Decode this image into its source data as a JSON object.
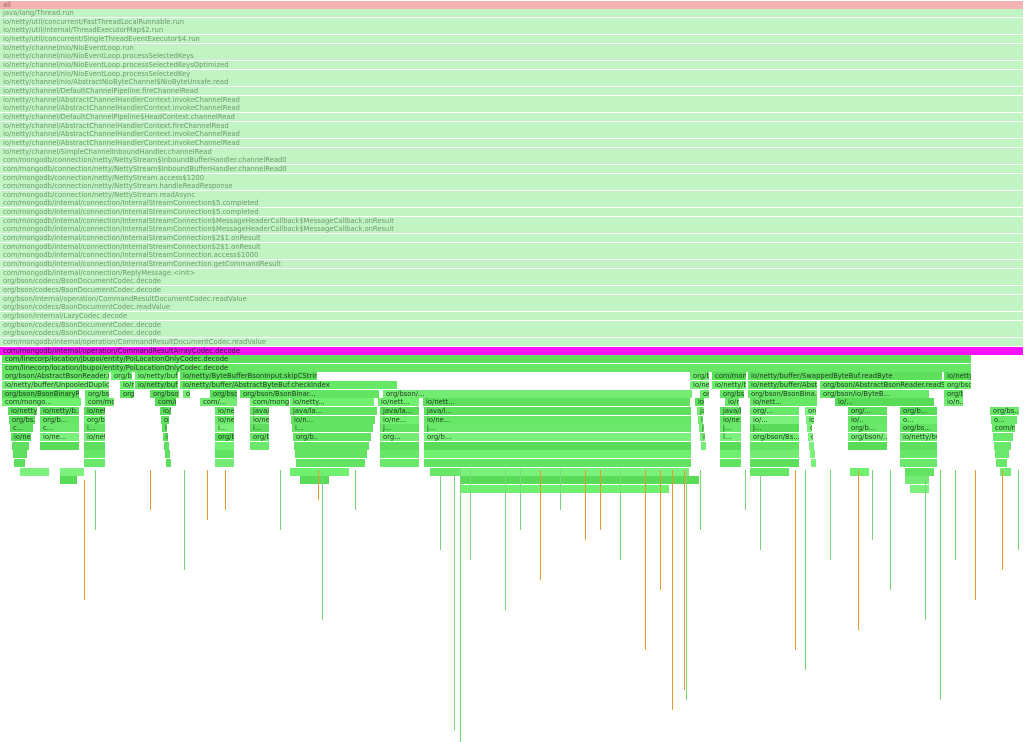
{
  "colors": {
    "root": "#f4b3b3",
    "dim": "#c2f3c2",
    "highlight": "#ff11ff",
    "hot": "#e2e862",
    "tick": "#e69a2c"
  },
  "frames": [
    "all",
    "java/lang/Thread.run",
    "io/netty/util/concurrent/FastThreadLocalRunnable.run",
    "io/netty/util/internal/ThreadExecutorMap$2.run",
    "io/netty/util/concurrent/SingleThreadEventExecutor$4.run",
    "io/netty/channel/nio/NioEventLoop.run",
    "io/netty/channel/nio/NioEventLoop.processSelectedKeys",
    "io/netty/channel/nio/NioEventLoop.processSelectedKeysOptimized",
    "io/netty/channel/nio/NioEventLoop.processSelectedKey",
    "io/netty/channel/nio/AbstractNioByteChannel$NioByteUnsafe.read",
    "io/netty/channel/DefaultChannelPipeline.fireChannelRead",
    "io/netty/channel/AbstractChannelHandlerContext.invokeChannelRead",
    "io/netty/channel/AbstractChannelHandlerContext.invokeChannelRead",
    "io/netty/channel/DefaultChannelPipeline$HeadContext.channelRead",
    "io/netty/channel/AbstractChannelHandlerContext.fireChannelRead",
    "io/netty/channel/AbstractChannelHandlerContext.invokeChannelRead",
    "io/netty/channel/AbstractChannelHandlerContext.invokeChannelRead",
    "io/netty/channel/SimpleChannelInboundHandler.channelRead",
    "com/mongodb/connection/netty/NettyStream$InboundBufferHandler.channelRead0",
    "com/mongodb/connection/netty/NettyStream$InboundBufferHandler.channelRead0",
    "com/mongodb/connection/netty/NettyStream.access$1200",
    "com/mongodb/connection/netty/NettyStream.handleReadResponse",
    "com/mongodb/connection/netty/NettyStream.readAsync",
    "com/mongodb/internal/connection/InternalStreamConnection$5.completed",
    "com/mongodb/internal/connection/InternalStreamConnection$5.completed",
    "com/mongodb/internal/connection/InternalStreamConnection$MessageHeaderCallback$MessageCallback.onResult",
    "com/mongodb/internal/connection/InternalStreamConnection$MessageHeaderCallback$MessageCallback.onResult",
    "com/mongodb/internal/connection/InternalStreamConnection$2$1.onResult",
    "com/mongodb/internal/connection/InternalStreamConnection$2$1.onResult",
    "com/mongodb/internal/connection/InternalStreamConnection.access$1000",
    "com/mongodb/internal/connection/InternalStreamConnection.getCommandResult",
    "com/mongodb/internal/connection/ReplyMessage.<init>",
    "org/bson/codecs/BsonDocumentCodec.decode",
    "org/bson/codecs/BsonDocumentCodec.decode",
    "org/bson/internal/operation/CommandResultDocumentCodec.readValue",
    "org/bson/codecs/BsonDocumentCodec.readValue",
    "org/bson/internal/LazyCodec.decode",
    "org/bson/codecs/BsonDocumentCodec.decode",
    "org/bson/codecs/BsonDocumentCodec.decode",
    "com/mongodb/internal/operation/CommandResultDocumentCodec.readValue",
    "com/mongodb/internal/operation/CommandResultArrayCodec.decode",
    "com/linecorp/location/jbupoi/entity/PoiLocationOnlyCodec.decode",
    "com/linecorp/location/jbupoi/entity/PoiLocationOnlyCodec.decode",
    "org/bson/AbstractBsonReader.readName",
    "org/bson/BsonBinaryReader.readBsonType",
    "io/netty/buffer/ByteBufferBsonInput.readCString",
    "io/netty/ByteBufferBsonInput.skipCString",
    "org/bson/io/ByteBufferBsonInput.skipCString",
    "com/mongodb/connection/netty/NettyByteBuf.get",
    "io/netty/buffer/SwappedByteBuf.readByte",
    "io/netty/buffer/AbstractByteBuf.readByte",
    "io/netty/buffer/UnpooledDuplicatedByteBuf._getByte",
    "io/netty/buffer/CompositeByteBuf._getByte",
    "io/netty/buffer/AbstractByteBuf.getByte",
    "io/netty/buffer/AbstractByteBuf.checkIndex",
    "io/netty/buffer/AbstractByteBuf.checkIndex",
    "io/netty/buffer/AbstractByteBuf.ens...",
    "io/netty/buffer/AbstractReferenceCo...",
    "org/bson/AbstractBsonReader.readString",
    "org/bson/AbstractBsonReader.ve...",
    "org/bson/BsonBinaryReader.rea...",
    "org/bson/io/ByteBufferBso...",
    "org/bson/Bs...",
    "org/bson/AbstractBsonReade...",
    "org/bson/AbstractBs...",
    "org/bson/AbstractBs...",
    "org/bson/BsonBinar...",
    "org/bson/...",
    "org/bs...",
    "org/bson/Abstract...",
    "org/bson/BsonBina...",
    "org/bson/io/ByteB...",
    "org/bson/io/...",
    "com/mongo...",
    "com/mon...",
    "com/mongodb/connect...",
    "com/...",
    "com/mongo...",
    "io/netty...",
    "io/nett...",
    "io/nett...",
    "io/nett...",
    "io/nett...",
    "io/nett...",
    "io/...",
    "io/n...",
    "io/netty/buffer...",
    "io/netty/b...",
    "io/netty/buffer...",
    "io/netty/b...",
    "io/netty/...",
    "java/lang...",
    "java/la...",
    "java/la...",
    "java/l...",
    "java/l...",
    "java/l...",
    "org/...",
    "org/b...",
    "org/...",
    "org/b...",
    "org/bs...",
    "org/bs...",
    "org/b...",
    "org/bson/...",
    "org/bson/ByteB...",
    "io/netty/ByteBufferBsonInput...",
    "io/ne...",
    "io/n...",
    "io/ne...",
    "io/ne...",
    "io/ne...",
    "io/ne...",
    "io/...",
    "io/o...",
    "io/..",
    "o...",
    "o...",
    "c...",
    "c...",
    "i...",
    "i...",
    "i...",
    "i...",
    "i...",
    "j...",
    "j...",
    "j...",
    "j...",
    "j...",
    "org/bson/Bs...",
    "org/b...",
    "org/bs...",
    "com/mon...",
    "io/ne...",
    "io/ne...",
    "io/netty/buffer/Abs...",
    "io/netty/buffer/Abs...",
    "org/bson/Bina...",
    "org/bson/io/...",
    "org/b..",
    "org...",
    "org/b...",
    "i...",
    "l...",
    "org/bson/Bs...",
    "org/bson/...",
    "org/bson/...",
    "io/netty/buffer/AbstractByteBuf.ens..."
  ]
}
